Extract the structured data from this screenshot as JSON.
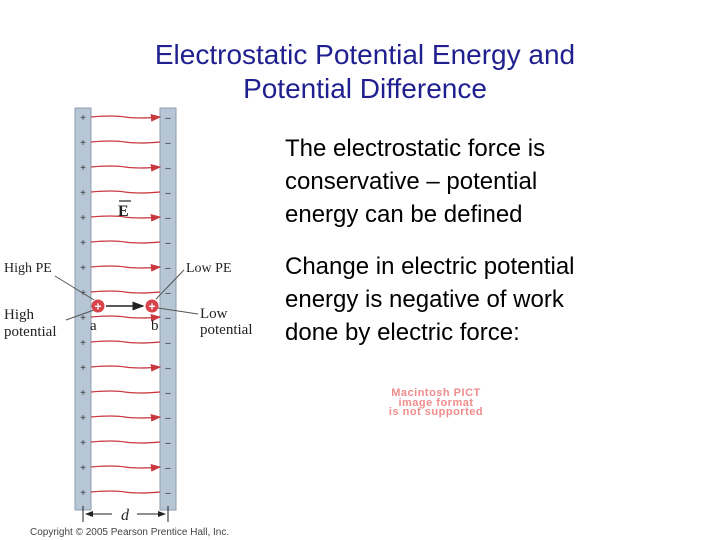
{
  "title": {
    "line1": "Electrostatic Potential Energy and",
    "line2": "Potential Difference"
  },
  "bullets": [
    {
      "lines": [
        "The electrostatic force is",
        "conservative – potential",
        "energy can be defined"
      ]
    },
    {
      "lines": [
        "Change in electric potential",
        "energy is negative of work",
        "done by electric force:"
      ]
    }
  ],
  "image_placeholder": {
    "lines": [
      "Macintosh PICT",
      "image format",
      "is not supported"
    ]
  },
  "diagram": {
    "field_label": "E",
    "high_pe": "High PE",
    "low_pe": "Low PE",
    "high_potential_1": "High",
    "high_potential_2": "potential",
    "low_potential_1": "Low",
    "low_potential_2": "potential",
    "point_a": "a",
    "point_b": "b",
    "distance": "d",
    "charge_symbol": "+",
    "left_plate_symbol": "+",
    "right_plate_symbol": "–",
    "copyright": "Copyright © 2005 Pearson Prentice Hall, Inc.",
    "colors": {
      "plate": "#b6c6d4",
      "plate_edge": "#8d9fb0",
      "field_line": "#c8393f",
      "charge": "#d8434b",
      "text": "#222222"
    }
  }
}
